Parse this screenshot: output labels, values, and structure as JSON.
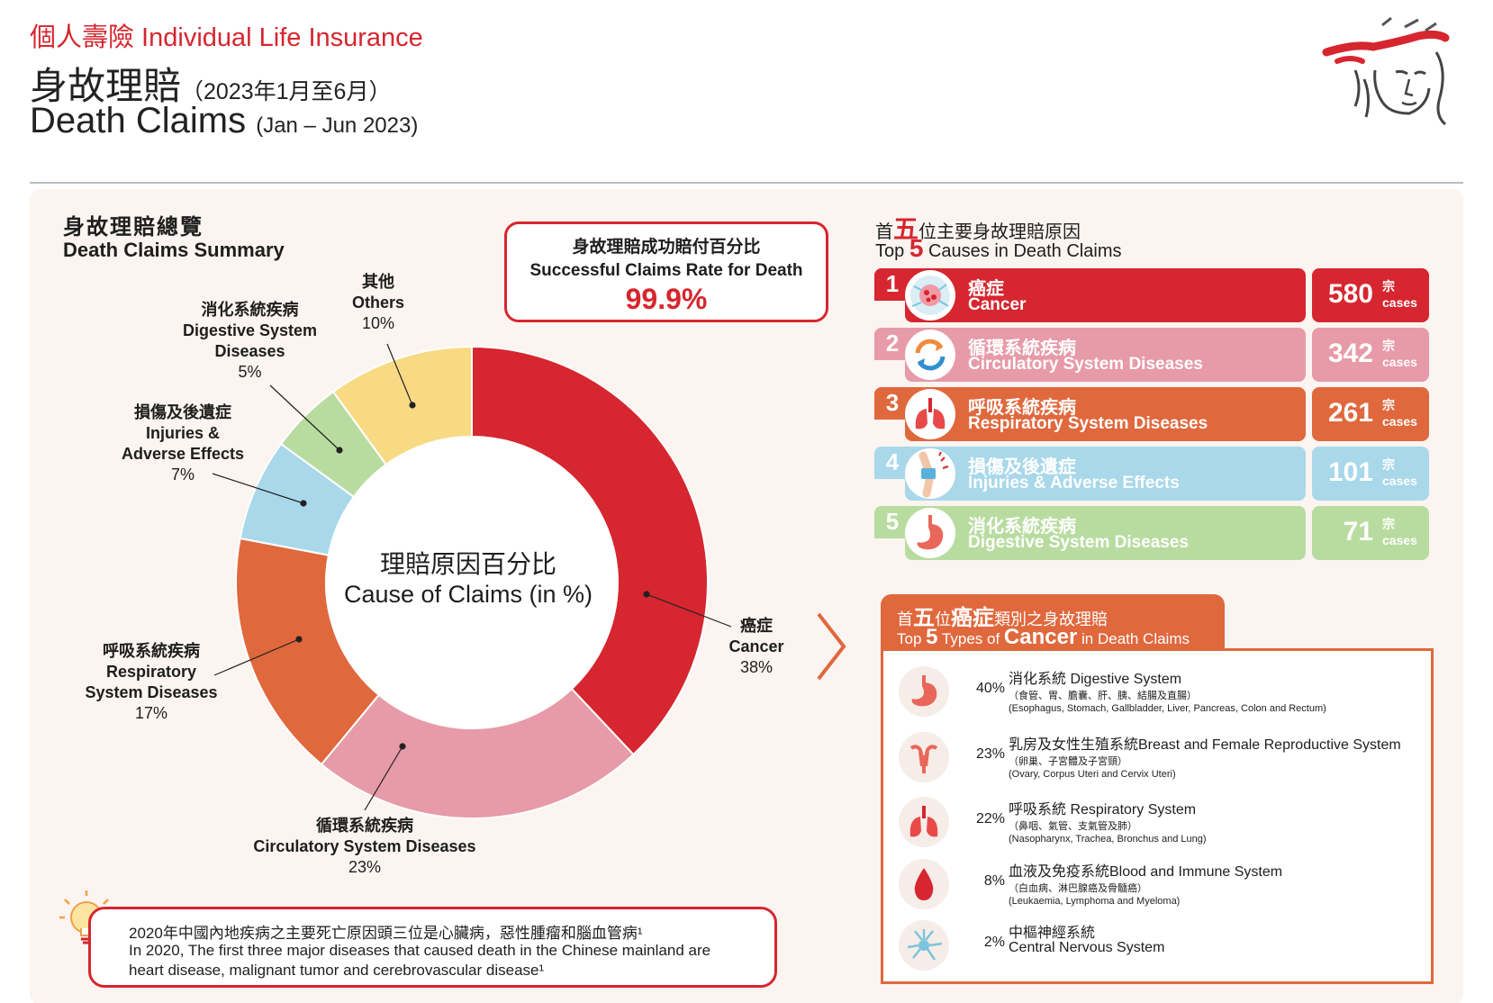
{
  "header": {
    "category": "個人壽險 Individual Life Insurance",
    "title_zh": "身故理賠",
    "period_zh": "（2023年1月至6月）",
    "title_en": "Death Claims",
    "period_en": "(Jan – Jun 2023)"
  },
  "summary": {
    "title_zh": "身故理賠總覽",
    "title_en": "Death Claims Summary"
  },
  "success_rate": {
    "label_zh": "身故理賠成功賠付百分比",
    "label_en": "Successful Claims Rate for Death",
    "value": "99.9%"
  },
  "chart_data": {
    "type": "pie",
    "variant": "donut",
    "title": "理賠原因百分比",
    "title_en": "Cause of Claims (in %)",
    "slices": [
      {
        "name_zh": "癌症",
        "name_en": "Cancer",
        "value": 38,
        "label": "38%",
        "color": "#d6262f"
      },
      {
        "name_zh": "循環系統疾病",
        "name_en": "Circulatory System Diseases",
        "value": 23,
        "label": "23%",
        "color": "#e79aa7"
      },
      {
        "name_zh": "呼吸系統疾病",
        "name_en": "Respiratory System Diseases",
        "value": 17,
        "label": "17%",
        "color": "#e0683d"
      },
      {
        "name_zh": "損傷及後遺症",
        "name_en": "Injuries & Adverse Effects",
        "value": 7,
        "label": "7%",
        "color": "#a8d8ea"
      },
      {
        "name_zh": "消化系統疾病",
        "name_en": "Digestive System Diseases",
        "value": 5,
        "label": "5%",
        "color": "#b8dca0"
      },
      {
        "name_zh": "其他",
        "name_en": "Others",
        "value": 10,
        "label": "10%",
        "color": "#f8da85"
      }
    ]
  },
  "donut_labels": {
    "cancer": {
      "zh": "癌症",
      "en": "Cancer",
      "pct": "38%"
    },
    "circ": {
      "zh": "循環系統疾病",
      "en": "Circulatory System Diseases",
      "pct": "23%"
    },
    "resp": {
      "zh": "呼吸系統疾病",
      "en1": "Respiratory",
      "en2": "System Diseases",
      "pct": "17%"
    },
    "inj": {
      "zh": "損傷及後遺症",
      "en1": "Injuries &",
      "en2": "Adverse Effects",
      "pct": "7%"
    },
    "dig": {
      "zh": "消化系統疾病",
      "en1": "Digestive System",
      "en2": "Diseases",
      "pct": "5%"
    },
    "oth": {
      "zh": "其他",
      "en": "Others",
      "pct": "10%"
    }
  },
  "top5": {
    "heading_zh_pre": "首",
    "heading_zh_num": "五",
    "heading_zh_post": "位主要身故理賠原因",
    "heading_en_pre": "Top ",
    "heading_en_num": "5",
    "heading_en_post": " Causes in Death Claims",
    "unit_zh": "宗",
    "unit_en": "cases",
    "items": [
      {
        "rank": "1",
        "zh": "癌症",
        "en": "Cancer",
        "cases": "580",
        "color": "#d6262f",
        "icon": "cancer-cell-icon"
      },
      {
        "rank": "2",
        "zh": "循環系統疾病",
        "en": "Circulatory System Diseases",
        "cases": "342",
        "color": "#e79aa7",
        "icon": "circulation-arrows-icon"
      },
      {
        "rank": "3",
        "zh": "呼吸系統疾病",
        "en": "Respiratory System Diseases",
        "cases": "261",
        "color": "#e0683d",
        "icon": "lungs-icon"
      },
      {
        "rank": "4",
        "zh": "損傷及後遺症",
        "en": "Injuries & Adverse Effects",
        "cases": "101",
        "color": "#a8d8ea",
        "icon": "bandaged-knee-icon"
      },
      {
        "rank": "5",
        "zh": "消化系統疾病",
        "en": "Digestive System Diseases",
        "cases": "71",
        "color": "#b8dca0",
        "icon": "stomach-icon"
      }
    ]
  },
  "cancer_types": {
    "heading_zh_pre": "首",
    "heading_zh_num": "五",
    "heading_zh_mid": "位",
    "heading_zh_hl": "癌症",
    "heading_zh_post": "類別之身故理賠",
    "heading_en_pre": "Top ",
    "heading_en_num": "5",
    "heading_en_mid": " Types of ",
    "heading_en_hl": "Cancer",
    "heading_en_post": " in Death Claims",
    "items": [
      {
        "pct": "40%",
        "title": "消化系統 Digestive System",
        "sub_zh": "（食管、胃、膽囊、肝、胰、結腸及直腸）",
        "sub_en": "(Esophagus, Stomach, Gallbladder, Liver, Pancreas, Colon and Rectum)",
        "icon": "stomach-icon"
      },
      {
        "pct": "23%",
        "title": "乳房及女性生殖系統Breast and Female Reproductive System",
        "sub_zh": "（卵巢、子宮體及子宮頸）",
        "sub_en": "(Ovary, Corpus Uteri and Cervix Uteri)",
        "icon": "uterus-icon"
      },
      {
        "pct": "22%",
        "title": "呼吸系統 Respiratory System",
        "sub_zh": "（鼻咽、氣管、支氣管及肺）",
        "sub_en": "(Nasopharynx, Trachea, Bronchus and Lung)",
        "icon": "lungs-icon"
      },
      {
        "pct": "8%",
        "title": "血液及免疫系統Blood and Immune System",
        "sub_zh": "（白血病、淋巴腺癌及骨髓癌）",
        "sub_en": "(Leukaemia, Lymphoma and Myeloma)",
        "icon": "blood-drop-icon"
      },
      {
        "pct": "2%",
        "title": "中樞神經系統",
        "sub_zh": "Central Nervous System",
        "sub_en": "",
        "icon": "neuron-icon"
      }
    ]
  },
  "note": {
    "zh": "2020年中國內地疾病之主要死亡原因頭三位是心臟病，惡性腫瘤和腦血管病¹",
    "en1": "In 2020, The first three major diseases that caused death in the Chinese mainland are",
    "en2": "heart disease, malignant tumor and cerebrovascular disease¹"
  },
  "colors": {
    "brand_red": "#d6262f",
    "orange": "#e0683d"
  }
}
